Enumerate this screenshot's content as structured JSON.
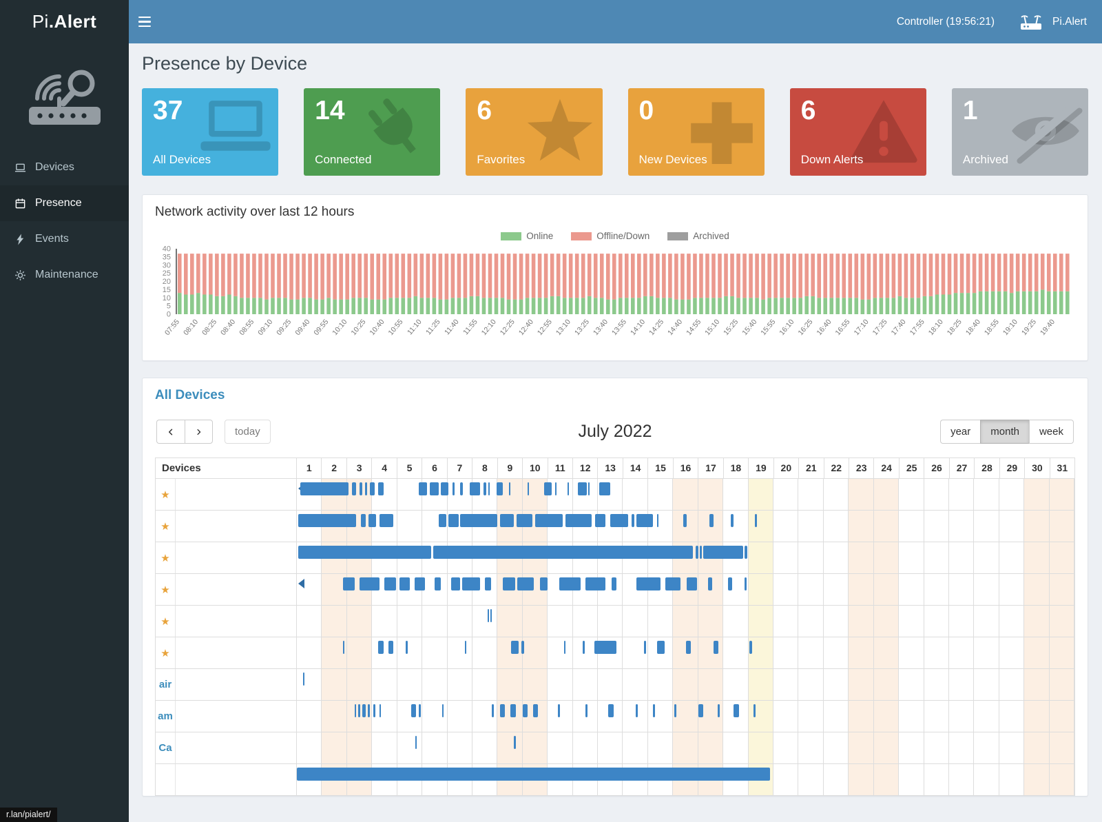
{
  "topbar": {
    "brand": "Pi.Alert",
    "controller_status": "Controller (19:56:21)",
    "app_name": "Pi.Alert"
  },
  "sidebar": {
    "items": [
      {
        "label": "Devices",
        "icon": "devices-icon",
        "active": false
      },
      {
        "label": "Presence",
        "icon": "calendar-icon",
        "active": true
      },
      {
        "label": "Events",
        "icon": "events-icon",
        "active": false
      },
      {
        "label": "Maintenance",
        "icon": "gear-icon",
        "active": false
      }
    ]
  },
  "statusbar": {
    "text": "r.lan/pialert/"
  },
  "page": {
    "title": "Presence by Device"
  },
  "summary_cards": [
    {
      "value": "37",
      "label": "All Devices",
      "color": "#45b1dd",
      "icon": "laptop-icon"
    },
    {
      "value": "14",
      "label": "Connected",
      "color": "#4e9d50",
      "icon": "plug-icon"
    },
    {
      "value": "6",
      "label": "Favorites",
      "color": "#e8a23d",
      "icon": "star-icon"
    },
    {
      "value": "0",
      "label": "New Devices",
      "color": "#e8a23d",
      "icon": "plus-icon"
    },
    {
      "value": "6",
      "label": "Down Alerts",
      "color": "#c74b40",
      "icon": "warning-icon"
    },
    {
      "value": "1",
      "label": "Archived",
      "color": "#aeb5bb",
      "icon": "eye-slash-icon"
    }
  ],
  "activity": {
    "title": "Network activity over last 12 hours",
    "chart_data": {
      "type": "bar",
      "stacked": true,
      "title": "Network activity over last 12 hours",
      "xlabel": "",
      "ylabel": "",
      "ylim": [
        0,
        40
      ],
      "ytick_step": 5,
      "grid": false,
      "legend_position": "top-center",
      "bar_count": 144,
      "label_every": 3,
      "x_labels": [
        "07:55",
        "08:10",
        "08:25",
        "08:40",
        "08:55",
        "09:10",
        "09:25",
        "09:40",
        "09:55",
        "10:10",
        "10:25",
        "10:40",
        "10:55",
        "11:10",
        "11:25",
        "11:40",
        "11:55",
        "12:10",
        "12:25",
        "12:40",
        "12:55",
        "13:10",
        "13:25",
        "13:40",
        "13:55",
        "14:10",
        "14:25",
        "14:40",
        "14:55",
        "15:10",
        "15:25",
        "15:40",
        "15:55",
        "16:10",
        "16:25",
        "16:40",
        "16:55",
        "17:10",
        "17:25",
        "17:40",
        "17:55",
        "18:10",
        "18:25",
        "18:40",
        "18:55",
        "19:10",
        "19:25",
        "19:40"
      ],
      "series": [
        {
          "name": "Online",
          "color": "#8cc98c",
          "values": [
            13,
            12,
            12,
            13,
            12,
            12,
            11,
            11,
            12,
            11,
            10,
            10,
            10,
            10,
            9,
            10,
            10,
            10,
            9,
            9,
            10,
            10,
            9,
            9,
            10,
            9,
            9,
            9,
            10,
            10,
            10,
            9,
            9,
            9,
            10,
            10,
            10,
            10,
            11,
            10,
            10,
            10,
            9,
            9,
            10,
            10,
            10,
            11,
            11,
            10,
            10,
            10,
            10,
            9,
            9,
            9,
            10,
            10,
            10,
            10,
            11,
            11,
            10,
            10,
            10,
            10,
            11,
            10,
            10,
            9,
            9,
            10,
            10,
            10,
            10,
            11,
            11,
            10,
            10,
            10,
            9,
            9,
            9,
            10,
            10,
            10,
            10,
            10,
            11,
            11,
            10,
            10,
            10,
            10,
            9,
            10,
            10,
            10,
            10,
            10,
            10,
            11,
            11,
            10,
            10,
            10,
            10,
            10,
            10,
            10,
            9,
            9,
            10,
            10,
            10,
            10,
            11,
            10,
            10,
            10,
            11,
            11,
            12,
            12,
            12,
            13,
            13,
            13,
            13,
            14,
            14,
            14,
            14,
            14,
            13,
            14,
            14,
            14,
            14,
            15,
            14,
            14,
            14,
            14
          ]
        },
        {
          "name": "Offline/Down",
          "color": "#eb998e",
          "values": [
            24,
            25,
            25,
            24,
            25,
            25,
            26,
            26,
            25,
            26,
            27,
            27,
            27,
            27,
            28,
            27,
            27,
            27,
            28,
            28,
            27,
            27,
            28,
            28,
            27,
            28,
            28,
            28,
            27,
            27,
            27,
            28,
            28,
            28,
            27,
            27,
            27,
            27,
            26,
            27,
            27,
            27,
            28,
            28,
            27,
            27,
            27,
            26,
            26,
            27,
            27,
            27,
            27,
            28,
            28,
            28,
            27,
            27,
            27,
            27,
            26,
            26,
            27,
            27,
            27,
            27,
            26,
            27,
            27,
            28,
            28,
            27,
            27,
            27,
            27,
            26,
            26,
            27,
            27,
            27,
            28,
            28,
            28,
            27,
            27,
            27,
            27,
            27,
            26,
            26,
            27,
            27,
            27,
            27,
            28,
            27,
            27,
            27,
            27,
            27,
            27,
            26,
            26,
            27,
            27,
            27,
            27,
            27,
            27,
            27,
            28,
            28,
            27,
            27,
            27,
            27,
            26,
            27,
            27,
            27,
            26,
            26,
            25,
            25,
            25,
            24,
            24,
            24,
            24,
            23,
            23,
            23,
            23,
            23,
            24,
            23,
            23,
            23,
            23,
            22,
            23,
            23,
            23,
            23
          ]
        },
        {
          "name": "Archived",
          "color": "#9e9e9e",
          "values_constant": 0
        }
      ]
    }
  },
  "presence_calendar": {
    "title": "All Devices",
    "toolbar": {
      "today_label": "today",
      "month_title": "July 2022",
      "views": [
        "year",
        "month",
        "week"
      ],
      "active_view": "month"
    },
    "grid": {
      "devices_header": "Devices",
      "days": [
        1,
        2,
        3,
        4,
        5,
        6,
        7,
        8,
        9,
        10,
        11,
        12,
        13,
        14,
        15,
        16,
        17,
        18,
        19,
        20,
        21,
        22,
        23,
        24,
        25,
        26,
        27,
        28,
        29,
        30,
        31
      ],
      "weekend_days": [
        2,
        3,
        9,
        10,
        16,
        17,
        23,
        24,
        30,
        31
      ],
      "today_day": 19,
      "bar_color": "#3d85c6"
    },
    "rows": [
      {
        "label": "",
        "favorite": true,
        "continues_left": true,
        "segments": [
          [
            1.15,
            3.05
          ],
          [
            3.2,
            3.35
          ],
          [
            3.5,
            3.62
          ],
          [
            3.72,
            3.8
          ],
          [
            3.9,
            4.1
          ],
          [
            4.25,
            4.45
          ],
          [
            5.85,
            6.2
          ],
          [
            6.3,
            6.65
          ],
          [
            6.75,
            7.05
          ],
          [
            7.2,
            7.28
          ],
          [
            7.5,
            7.62
          ],
          [
            7.9,
            8.3
          ],
          [
            8.45,
            8.55
          ],
          [
            8.62,
            8.68
          ],
          [
            8.95,
            9.2
          ],
          [
            9.45,
            9.5
          ],
          [
            10.2,
            10.26
          ],
          [
            10.85,
            11.15
          ],
          [
            11.3,
            11.36
          ],
          [
            11.78,
            11.84
          ],
          [
            12.2,
            12.55
          ],
          [
            12.62,
            12.68
          ],
          [
            13.05,
            13.5
          ]
        ]
      },
      {
        "label": "",
        "favorite": true,
        "continues_left": false,
        "segments": [
          [
            1.05,
            3.35
          ],
          [
            3.55,
            3.75
          ],
          [
            3.85,
            4.15
          ],
          [
            4.3,
            4.85
          ],
          [
            6.65,
            6.95
          ],
          [
            7.05,
            7.45
          ],
          [
            7.5,
            9.0
          ],
          [
            9.1,
            9.65
          ],
          [
            9.75,
            10.4
          ],
          [
            10.5,
            11.6
          ],
          [
            11.7,
            12.75
          ],
          [
            12.9,
            13.3
          ],
          [
            13.5,
            14.2
          ],
          [
            14.35,
            14.45
          ],
          [
            14.55,
            15.2
          ],
          [
            15.35,
            15.42
          ],
          [
            16.4,
            16.55
          ],
          [
            17.45,
            17.6
          ],
          [
            18.3,
            18.42
          ],
          [
            19.25,
            19.35
          ]
        ]
      },
      {
        "label": "",
        "favorite": true,
        "continues_left": false,
        "segments": [
          [
            1.05,
            6.35
          ],
          [
            6.45,
            16.8
          ],
          [
            16.9,
            17.0
          ],
          [
            17.05,
            17.15
          ],
          [
            17.2,
            18.8
          ],
          [
            18.85,
            18.95
          ]
        ]
      },
      {
        "label": "",
        "favorite": true,
        "continues_left": true,
        "segments": [
          [
            2.85,
            3.3
          ],
          [
            3.5,
            4.3
          ],
          [
            4.5,
            4.95
          ],
          [
            5.1,
            5.5
          ],
          [
            5.7,
            6.1
          ],
          [
            6.5,
            6.75
          ],
          [
            7.15,
            7.5
          ],
          [
            7.6,
            8.3
          ],
          [
            8.5,
            8.75
          ],
          [
            9.2,
            9.7
          ],
          [
            9.8,
            10.45
          ],
          [
            10.7,
            11.0
          ],
          [
            11.45,
            12.3
          ],
          [
            12.5,
            13.3
          ],
          [
            13.55,
            13.75
          ],
          [
            14.55,
            15.5
          ],
          [
            15.7,
            16.3
          ],
          [
            16.55,
            16.95
          ],
          [
            17.4,
            17.55
          ],
          [
            18.2,
            18.35
          ],
          [
            18.85,
            18.92
          ]
        ]
      },
      {
        "label": "",
        "favorite": true,
        "continues_left": false,
        "segments": [
          [
            8.6,
            8.64
          ],
          [
            8.72,
            8.76
          ]
        ]
      },
      {
        "label": "",
        "favorite": true,
        "continues_left": false,
        "segments": [
          [
            2.85,
            2.9
          ],
          [
            4.25,
            4.45
          ],
          [
            4.65,
            4.85
          ],
          [
            5.35,
            5.42
          ],
          [
            7.7,
            7.76
          ],
          [
            9.55,
            9.85
          ],
          [
            9.95,
            10.05
          ],
          [
            11.65,
            11.72
          ],
          [
            12.4,
            12.48
          ],
          [
            12.85,
            13.75
          ],
          [
            14.85,
            14.92
          ],
          [
            15.35,
            15.65
          ],
          [
            16.5,
            16.7
          ],
          [
            17.6,
            17.8
          ],
          [
            19.05,
            19.15
          ]
        ]
      },
      {
        "label": "air",
        "favorite": false,
        "continues_left": false,
        "segments": [
          [
            1.25,
            1.3
          ]
        ]
      },
      {
        "label": "am",
        "favorite": false,
        "continues_left": false,
        "segments": [
          [
            3.3,
            3.36
          ],
          [
            3.44,
            3.52
          ],
          [
            3.6,
            3.75
          ],
          [
            3.82,
            3.92
          ],
          [
            4.05,
            4.12
          ],
          [
            4.3,
            4.36
          ],
          [
            5.55,
            5.75
          ],
          [
            5.85,
            5.95
          ],
          [
            6.78,
            6.84
          ],
          [
            8.78,
            8.84
          ],
          [
            9.1,
            9.3
          ],
          [
            9.5,
            9.72
          ],
          [
            10.0,
            10.2
          ],
          [
            10.42,
            10.6
          ],
          [
            11.4,
            11.48
          ],
          [
            12.5,
            12.58
          ],
          [
            13.4,
            13.62
          ],
          [
            14.5,
            14.58
          ],
          [
            15.2,
            15.28
          ],
          [
            16.05,
            16.12
          ],
          [
            17.0,
            17.2
          ],
          [
            17.78,
            17.86
          ],
          [
            18.4,
            18.62
          ],
          [
            19.2,
            19.3
          ]
        ]
      },
      {
        "label": "Ca",
        "favorite": false,
        "continues_left": false,
        "segments": [
          [
            5.72,
            5.78
          ],
          [
            9.65,
            9.72
          ]
        ]
      },
      {
        "label": "",
        "favorite": false,
        "continues_left": true,
        "segments": [
          [
            1.0,
            19.85
          ]
        ]
      }
    ]
  }
}
